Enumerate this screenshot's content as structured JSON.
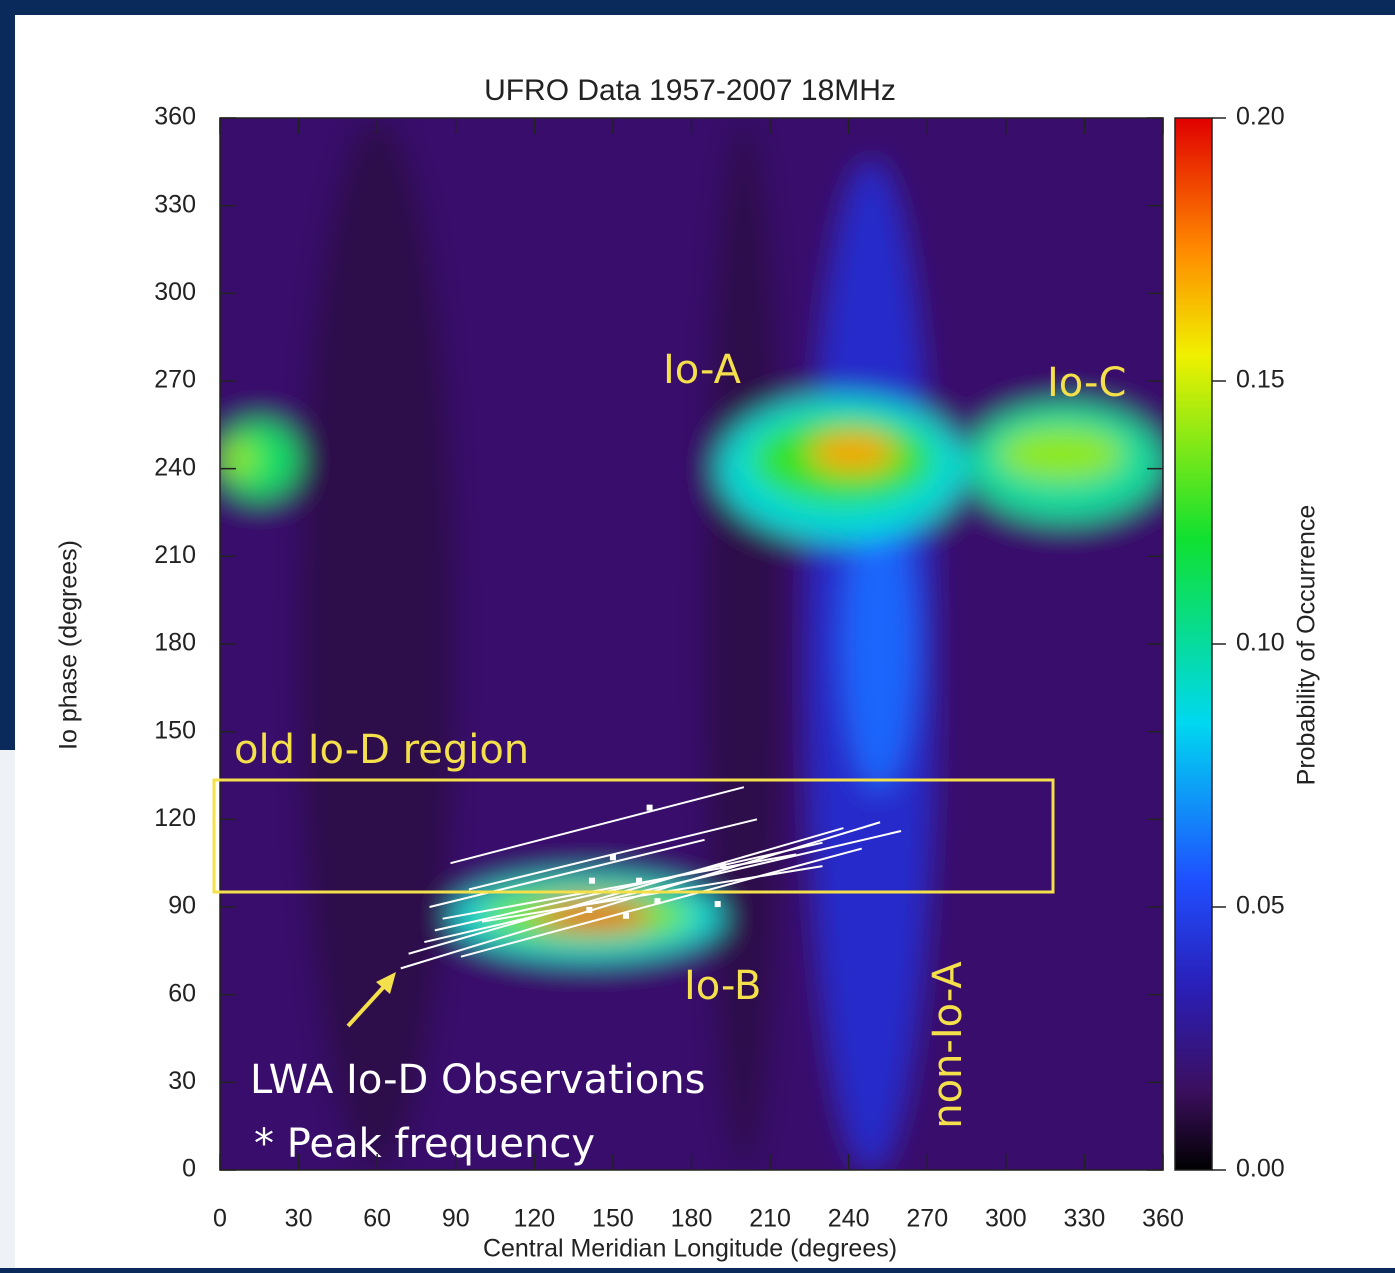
{
  "chart_data": {
    "type": "heatmap",
    "title": "UFRO Data 1957-2007  18MHz",
    "x_label": "Central Meridian Longitude (degrees)",
    "y_label": "Io phase (degrees)",
    "colorbar_label": "Probability of Occurrence",
    "xlim": [
      0,
      360
    ],
    "ylim": [
      0,
      360
    ],
    "xticks": [
      0,
      30,
      60,
      90,
      120,
      150,
      180,
      210,
      240,
      270,
      300,
      330,
      360
    ],
    "yticks": [
      0,
      30,
      60,
      90,
      120,
      150,
      180,
      210,
      240,
      270,
      300,
      330,
      360
    ],
    "clim": [
      0,
      0.2
    ],
    "cticks": [
      {
        "value": 0,
        "label": "0.00"
      },
      {
        "value": 0.05,
        "label": "0.05"
      },
      {
        "value": 0.1,
        "label": "0.10"
      },
      {
        "value": 0.15,
        "label": "0.15"
      },
      {
        "value": 0.2,
        "label": "0.20"
      }
    ],
    "colormap": [
      {
        "value": 0,
        "color": "#000000"
      },
      {
        "value": 0.015,
        "color": "#3b0f5e"
      },
      {
        "value": 0.035,
        "color": "#2a1fb8"
      },
      {
        "value": 0.055,
        "color": "#1f4fff"
      },
      {
        "value": 0.085,
        "color": "#00d8f0"
      },
      {
        "value": 0.12,
        "color": "#10e030"
      },
      {
        "value": 0.155,
        "color": "#f0f000"
      },
      {
        "value": 0.175,
        "color": "#ff8a00"
      },
      {
        "value": 0.2,
        "color": "#e00000"
      }
    ],
    "cells": [
      {
        "x": [
          0,
          360
        ],
        "y": [
          0,
          360
        ],
        "value": 0.018
      },
      {
        "x": [
          30,
          90
        ],
        "y": [
          0,
          360
        ],
        "value": 0.012
      },
      {
        "x": [
          185,
          215
        ],
        "y": [
          0,
          360
        ],
        "value": 0.012
      },
      {
        "x": [
          225,
          272
        ],
        "y": [
          0,
          345
        ],
        "value": 0.04
      },
      {
        "x": [
          238,
          265
        ],
        "y": [
          130,
          230
        ],
        "value": 0.06
      },
      {
        "x": [
          0,
          30
        ],
        "y": [
          230,
          256
        ],
        "value": 0.11
      },
      {
        "x": [
          0,
          14
        ],
        "y": [
          237,
          250
        ],
        "value": 0.14
      },
      {
        "x": [
          190,
          285
        ],
        "y": [
          215,
          265
        ],
        "value": 0.09
      },
      {
        "x": [
          203,
          272
        ],
        "y": [
          228,
          258
        ],
        "value": 0.125
      },
      {
        "x": [
          225,
          258
        ],
        "y": [
          239,
          252
        ],
        "value": 0.17
      },
      {
        "x": [
          285,
          360
        ],
        "y": [
          222,
          262
        ],
        "value": 0.1
      },
      {
        "x": [
          297,
          345
        ],
        "y": [
          236,
          254
        ],
        "value": 0.14
      },
      {
        "x": [
          88,
          192
        ],
        "y": [
          72,
          101
        ],
        "value": 0.09
      },
      {
        "x": [
          100,
          180
        ],
        "y": [
          78,
          96
        ],
        "value": 0.135
      },
      {
        "x": [
          120,
          165
        ],
        "y": [
          82,
          92
        ],
        "value": 0.185
      }
    ],
    "lwa_observations": {
      "x": [
        [
          88,
          200
        ],
        [
          69,
          252
        ],
        [
          72,
          238
        ],
        [
          78,
          260
        ],
        [
          82,
          230
        ],
        [
          85,
          220
        ],
        [
          92,
          245
        ],
        [
          95,
          205
        ],
        [
          80,
          185
        ],
        [
          100,
          230
        ]
      ],
      "y": [
        [
          105,
          131
        ],
        [
          69,
          119
        ],
        [
          74,
          117
        ],
        [
          78,
          116
        ],
        [
          82,
          112
        ],
        [
          86,
          108
        ],
        [
          73,
          110
        ],
        [
          96,
          120
        ],
        [
          90,
          113
        ],
        [
          85,
          104
        ]
      ]
    },
    "peak_points": {
      "x": [
        164,
        150,
        160,
        192,
        141,
        155,
        167,
        190,
        142
      ],
      "y": [
        124,
        107,
        99,
        104,
        89,
        87,
        92,
        91,
        99
      ]
    },
    "annotations": {
      "io_a": "Io-A",
      "io_b": "Io-B",
      "io_c": "Io-C",
      "non_io_a": "non-Io-A",
      "old_io_d": "old Io-D region",
      "lwa": "LWA Io-D Observations",
      "peak": "* Peak frequency"
    }
  }
}
